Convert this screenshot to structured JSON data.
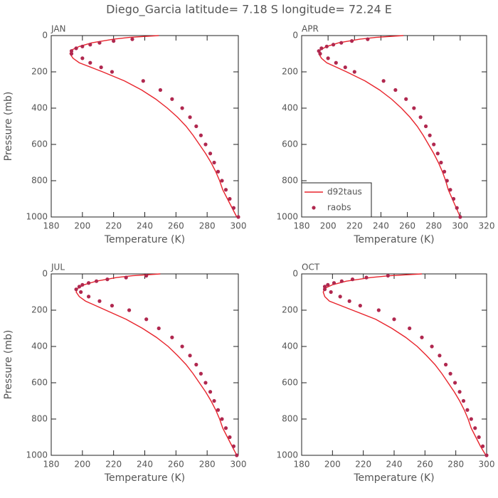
{
  "title": "Diego_Garcia  latitude= 7.18 S longitude= 72.24 E",
  "chart_data": [
    {
      "type": "line",
      "panel_label": "JAN",
      "xlabel": "Temperature (K)",
      "ylabel": "Pressure (mb)",
      "xlim": [
        180,
        300
      ],
      "xticks": [
        180,
        200,
        220,
        240,
        260,
        280,
        300
      ],
      "ylim": [
        1000,
        0
      ],
      "yticks": [
        0,
        200,
        400,
        600,
        800,
        1000
      ],
      "grid": false,
      "series": [
        {
          "style": "line",
          "color": "#e8242c",
          "x": [
            299,
            296,
            293,
            290,
            288,
            285.5,
            282.5,
            279,
            275,
            271,
            266.5,
            261,
            254.5,
            247,
            238,
            227,
            213,
            198,
            194,
            192,
            193,
            198,
            206,
            220,
            230,
            249
          ],
          "y": [
            1000,
            950,
            900,
            850,
            800,
            750,
            700,
            650,
            600,
            550,
            500,
            450,
            400,
            350,
            300,
            250,
            200,
            150,
            125,
            100,
            80,
            60,
            40,
            20,
            10,
            0
          ]
        },
        {
          "style": "marker",
          "color": "#b0284f",
          "x": [
            300,
            297,
            294.5,
            292,
            289.5,
            287,
            284.5,
            282,
            279,
            276,
            273,
            269,
            264,
            257.5,
            250,
            239,
            219,
            212,
            205,
            200,
            193,
            193,
            196,
            200,
            205,
            211,
            220,
            232
          ],
          "y": [
            1000,
            950,
            900,
            850,
            800,
            750,
            700,
            650,
            600,
            550,
            500,
            450,
            400,
            350,
            300,
            250,
            200,
            175,
            150,
            125,
            100,
            85,
            70,
            60,
            50,
            40,
            30,
            20
          ]
        }
      ]
    },
    {
      "type": "line",
      "panel_label": "APR",
      "xlabel": "Temperature (K)",
      "xlim": [
        180,
        320
      ],
      "xticks": [
        180,
        200,
        220,
        240,
        260,
        280,
        300,
        320
      ],
      "ylim": [
        1000,
        0
      ],
      "yticks": [
        0,
        200,
        400,
        600,
        800,
        1000
      ],
      "grid": false,
      "legend": "lower left",
      "series": [
        {
          "name": "d92taus",
          "style": "line",
          "color": "#e8242c",
          "x": [
            300,
            297,
            294,
            291,
            289,
            286.5,
            283.5,
            280,
            276,
            272,
            267.5,
            262,
            255.5,
            248,
            239,
            228,
            214,
            199,
            195,
            193,
            194,
            199,
            208,
            224,
            236,
            257
          ],
          "y": [
            1000,
            950,
            900,
            850,
            800,
            750,
            700,
            650,
            600,
            550,
            500,
            450,
            400,
            350,
            300,
            250,
            200,
            150,
            125,
            100,
            80,
            60,
            40,
            20,
            10,
            0
          ]
        },
        {
          "name": "raobs",
          "style": "marker",
          "color": "#b0284f",
          "x": [
            300,
            297.5,
            295,
            292.5,
            290,
            288,
            285.5,
            283,
            280,
            277,
            274,
            270,
            265,
            259,
            251,
            242,
            220,
            213,
            206,
            200,
            194,
            193,
            195,
            199,
            204,
            210,
            218,
            230
          ],
          "y": [
            1000,
            950,
            900,
            850,
            800,
            750,
            700,
            650,
            600,
            550,
            500,
            450,
            400,
            350,
            300,
            250,
            200,
            175,
            150,
            125,
            100,
            85,
            70,
            60,
            50,
            40,
            30,
            20
          ]
        }
      ]
    },
    {
      "type": "line",
      "panel_label": "JUL",
      "xlabel": "Temperature (K)",
      "ylabel": "Pressure (mb)",
      "xlim": [
        180,
        300
      ],
      "xticks": [
        180,
        200,
        220,
        240,
        260,
        280,
        300
      ],
      "ylim": [
        1000,
        0
      ],
      "yticks": [
        0,
        200,
        400,
        600,
        800,
        1000
      ],
      "grid": false,
      "series": [
        {
          "style": "line",
          "color": "#e8242c",
          "x": [
            299,
            296,
            293,
            290,
            288,
            285.5,
            282.5,
            279,
            275,
            271,
            266.5,
            261,
            255,
            247.5,
            238.5,
            228,
            215,
            202,
            198,
            196,
            197,
            201,
            209,
            222,
            232,
            250
          ],
          "y": [
            1000,
            950,
            900,
            850,
            800,
            750,
            700,
            650,
            600,
            550,
            500,
            450,
            400,
            350,
            300,
            250,
            200,
            150,
            125,
            100,
            80,
            60,
            40,
            20,
            10,
            0
          ]
        },
        {
          "style": "marker",
          "color": "#b0284f",
          "x": [
            299,
            297,
            294.5,
            292,
            289.5,
            287,
            284.5,
            282,
            279,
            276,
            273,
            269,
            264,
            257.5,
            249,
            241,
            230,
            219,
            211,
            204,
            199,
            196,
            198,
            200,
            204,
            209,
            216,
            228,
            241
          ],
          "y": [
            1000,
            950,
            900,
            850,
            800,
            750,
            700,
            650,
            600,
            550,
            500,
            450,
            400,
            350,
            300,
            250,
            200,
            175,
            150,
            125,
            100,
            85,
            70,
            60,
            50,
            40,
            30,
            20,
            10
          ]
        }
      ]
    },
    {
      "type": "line",
      "panel_label": "OCT",
      "xlabel": "Temperature (K)",
      "xlim": [
        180,
        300
      ],
      "xticks": [
        180,
        200,
        220,
        240,
        260,
        280,
        300
      ],
      "ylim": [
        1000,
        0
      ],
      "yticks": [
        0,
        200,
        400,
        600,
        800,
        1000
      ],
      "grid": false,
      "series": [
        {
          "style": "line",
          "color": "#e8242c",
          "x": [
            299.5,
            296,
            293,
            290,
            288,
            285.5,
            282.5,
            279,
            275,
            271,
            266.5,
            261,
            255,
            247.5,
            238.5,
            228,
            213,
            198,
            195,
            194,
            195,
            200,
            209,
            225,
            237,
            258
          ],
          "y": [
            1000,
            950,
            900,
            850,
            800,
            750,
            700,
            650,
            600,
            550,
            500,
            450,
            400,
            350,
            300,
            250,
            200,
            150,
            125,
            100,
            80,
            60,
            40,
            20,
            10,
            0
          ]
        },
        {
          "style": "marker",
          "color": "#b0284f",
          "x": [
            300,
            297.5,
            295,
            292.5,
            290,
            287.5,
            285,
            282.5,
            279.5,
            276.5,
            273.5,
            269.5,
            264.5,
            258,
            250,
            240,
            230,
            218,
            211,
            205,
            199,
            195,
            195,
            197,
            201,
            206,
            213,
            222,
            236
          ],
          "y": [
            1000,
            950,
            900,
            850,
            800,
            750,
            700,
            650,
            600,
            550,
            500,
            450,
            400,
            350,
            300,
            250,
            200,
            175,
            150,
            125,
            100,
            85,
            70,
            60,
            50,
            40,
            30,
            20,
            10
          ]
        }
      ]
    }
  ]
}
